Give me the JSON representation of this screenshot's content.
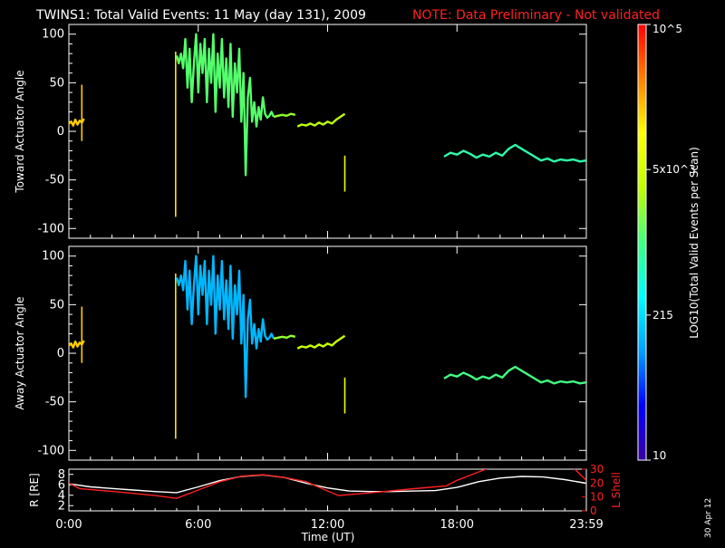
{
  "header": {
    "title": "TWINS1: Total Valid Events: 11 May (day 131), 2009",
    "note": "NOTE: Data Preliminary - Not validated"
  },
  "stamp": "30 Apr 12",
  "colors": {
    "background": "#000000",
    "axes": "#ffffff",
    "note": "#ff2020",
    "r_line": "#ffffff",
    "lshell_line": "#ff2020"
  },
  "chart_data": [
    {
      "id": "toward",
      "type": "line",
      "ylabel": "Toward Actuator Angle",
      "ylim": [
        -110,
        110
      ],
      "yticks": [
        -100,
        -50,
        0,
        50,
        100
      ],
      "xlim": [
        0,
        24
      ],
      "xticks": [
        0,
        6,
        12,
        18,
        24
      ],
      "tick_labels": [
        "0:00",
        "6:00",
        "12:00",
        "18:00",
        "23:59"
      ],
      "color_scale": "log10(events per scan)",
      "segments": [
        {
          "x": [
            0.0,
            0.1,
            0.2,
            0.3,
            0.4,
            0.5,
            0.6,
            0.7
          ],
          "y": [
            8,
            10,
            6,
            12,
            7,
            11,
            9,
            13
          ],
          "level": 0.8
        },
        {
          "x": [
            0.6,
            0.6
          ],
          "y": [
            -10,
            48
          ],
          "level": 0.8,
          "spike": true
        },
        {
          "x": [
            4.95,
            4.95
          ],
          "y": [
            -88,
            82
          ],
          "level": 0.78,
          "spike": true
        },
        {
          "x": [
            5.0,
            5.1,
            5.2,
            5.3,
            5.4,
            5.5,
            5.6,
            5.7,
            5.8,
            5.9,
            6.0,
            6.1,
            6.2,
            6.3,
            6.4,
            6.5,
            6.6,
            6.7,
            6.8,
            6.9,
            7.0,
            7.1,
            7.2,
            7.3,
            7.4,
            7.5,
            7.6,
            7.7,
            7.8,
            7.9,
            8.0,
            8.1,
            8.2,
            8.3,
            8.4,
            8.5,
            8.6,
            8.7,
            8.8,
            8.9,
            9.0,
            9.1,
            9.2,
            9.3,
            9.4,
            9.5
          ],
          "y": [
            78,
            70,
            80,
            65,
            95,
            45,
            85,
            30,
            70,
            100,
            40,
            90,
            60,
            95,
            30,
            85,
            50,
            100,
            20,
            80,
            45,
            95,
            35,
            75,
            25,
            90,
            15,
            70,
            40,
            85,
            10,
            60,
            -45,
            35,
            55,
            10,
            30,
            5,
            25,
            12,
            35,
            18,
            14,
            16,
            20,
            15
          ],
          "level": 0.52
        },
        {
          "x": [
            9.5,
            9.7,
            9.9,
            10.1,
            10.3,
            10.5
          ],
          "y": [
            15,
            16,
            17,
            16,
            18,
            17
          ],
          "level": 0.58
        },
        {
          "x": [
            10.6,
            10.8,
            11.0,
            11.2,
            11.4,
            11.6,
            11.8,
            12.0,
            12.2,
            12.4,
            12.6,
            12.8
          ],
          "y": [
            5,
            7,
            6,
            8,
            6,
            9,
            7,
            10,
            8,
            12,
            15,
            18
          ],
          "level": 0.62
        },
        {
          "x": [
            12.8,
            12.8
          ],
          "y": [
            -62,
            -25
          ],
          "level": 0.72,
          "spike": true
        },
        {
          "x": [
            17.4,
            17.7,
            18.0,
            18.3,
            18.6,
            18.9,
            19.2,
            19.5,
            19.8,
            20.1,
            20.4,
            20.7,
            21.0,
            21.3,
            21.6,
            21.9,
            22.2,
            22.5,
            22.8,
            23.1,
            23.4,
            23.7,
            23.99
          ],
          "y": [
            -26,
            -22,
            -24,
            -20,
            -23,
            -27,
            -24,
            -26,
            -22,
            -25,
            -18,
            -14,
            -18,
            -22,
            -26,
            -30,
            -28,
            -31,
            -29,
            -30,
            -29,
            -31,
            -30
          ],
          "level": 0.46
        }
      ]
    },
    {
      "id": "away",
      "type": "line",
      "ylabel": "Away Actuator Angle",
      "ylim": [
        -110,
        110
      ],
      "yticks": [
        -100,
        -50,
        0,
        50,
        100
      ],
      "xlim": [
        0,
        24
      ],
      "xticks": [
        0,
        6,
        12,
        18,
        24
      ],
      "tick_labels": [
        "0:00",
        "6:00",
        "12:00",
        "18:00",
        "23:59"
      ],
      "color_scale": "log10(events per scan)",
      "segments": [
        {
          "x": [
            0.0,
            0.1,
            0.2,
            0.3,
            0.4,
            0.5,
            0.6,
            0.7
          ],
          "y": [
            8,
            10,
            6,
            12,
            7,
            11,
            9,
            13
          ],
          "level": 0.8
        },
        {
          "x": [
            0.6,
            0.6
          ],
          "y": [
            -10,
            48
          ],
          "level": 0.8,
          "spike": true
        },
        {
          "x": [
            4.95,
            4.95
          ],
          "y": [
            -88,
            82
          ],
          "level": 0.78,
          "spike": true
        },
        {
          "x": [
            5.0,
            5.1,
            5.2,
            5.3,
            5.4,
            5.5,
            5.6,
            5.7,
            5.8,
            5.9,
            6.0,
            6.1,
            6.2,
            6.3,
            6.4,
            6.5,
            6.6,
            6.7,
            6.8,
            6.9,
            7.0,
            7.1,
            7.2,
            7.3,
            7.4,
            7.5,
            7.6,
            7.7,
            7.8,
            7.9,
            8.0,
            8.1,
            8.2,
            8.3,
            8.4,
            8.5,
            8.6,
            8.7,
            8.8,
            8.9,
            9.0,
            9.1,
            9.2,
            9.3,
            9.4,
            9.5
          ],
          "y": [
            78,
            70,
            80,
            65,
            95,
            45,
            85,
            30,
            70,
            100,
            40,
            90,
            60,
            95,
            30,
            85,
            50,
            100,
            20,
            80,
            45,
            95,
            35,
            75,
            25,
            90,
            15,
            70,
            40,
            85,
            10,
            60,
            -45,
            35,
            55,
            10,
            30,
            5,
            25,
            12,
            35,
            18,
            14,
            16,
            20,
            15
          ],
          "level": 0.28
        },
        {
          "x": [
            9.5,
            9.7,
            9.9,
            10.1,
            10.3,
            10.5
          ],
          "y": [
            15,
            16,
            17,
            16,
            18,
            17
          ],
          "level": 0.58
        },
        {
          "x": [
            10.6,
            10.8,
            11.0,
            11.2,
            11.4,
            11.6,
            11.8,
            12.0,
            12.2,
            12.4,
            12.6,
            12.8
          ],
          "y": [
            5,
            7,
            6,
            8,
            6,
            9,
            7,
            10,
            8,
            12,
            15,
            18
          ],
          "level": 0.64
        },
        {
          "x": [
            12.8,
            12.8
          ],
          "y": [
            -62,
            -25
          ],
          "level": 0.72,
          "spike": true
        },
        {
          "x": [
            17.4,
            17.7,
            18.0,
            18.3,
            18.6,
            18.9,
            19.2,
            19.5,
            19.8,
            20.1,
            20.4,
            20.7,
            21.0,
            21.3,
            21.6,
            21.9,
            22.2,
            22.5,
            22.8,
            23.1,
            23.4,
            23.7,
            23.99
          ],
          "y": [
            -26,
            -22,
            -24,
            -20,
            -23,
            -27,
            -24,
            -26,
            -22,
            -25,
            -18,
            -14,
            -18,
            -22,
            -26,
            -30,
            -28,
            -31,
            -29,
            -30,
            -29,
            -31,
            -30
          ],
          "level": 0.5
        }
      ]
    },
    {
      "id": "orbit",
      "type": "line",
      "xlabel": "Time (UT)",
      "ylabel_left": "R [RE]",
      "ylabel_right": "L Shell",
      "xlim": [
        0,
        24
      ],
      "xticks": [
        0,
        6,
        12,
        18,
        24
      ],
      "tick_labels": [
        "0:00",
        "6:00",
        "12:00",
        "18:00",
        "23:59"
      ],
      "ylim_left": [
        1,
        9
      ],
      "yticks_left": [
        2,
        4,
        6,
        8
      ],
      "ylim_right": [
        0,
        30
      ],
      "yticks_right": [
        0,
        10,
        20,
        30
      ],
      "series": [
        {
          "axis": "left",
          "color": "#ffffff",
          "x": [
            0,
            1,
            2,
            3,
            4,
            5,
            6,
            7,
            8,
            9,
            10,
            11,
            12,
            13,
            14,
            15,
            16,
            17,
            18,
            19,
            20,
            21,
            22,
            23,
            23.99
          ],
          "y": [
            6.2,
            5.6,
            5.3,
            5.0,
            4.7,
            4.5,
            5.6,
            6.8,
            7.6,
            7.9,
            7.4,
            6.3,
            5.4,
            4.8,
            4.7,
            4.7,
            4.8,
            4.9,
            5.5,
            6.6,
            7.3,
            7.6,
            7.5,
            7.0,
            6.3
          ]
        },
        {
          "axis": "right",
          "color": "#ff2020",
          "x": [
            0,
            0.5,
            2,
            4,
            5,
            6,
            7,
            8,
            9,
            10,
            11,
            12.5,
            14,
            16,
            17.5,
            18,
            19,
            20,
            23.2,
            23.6,
            24
          ],
          "y": [
            20,
            16,
            14,
            11,
            9,
            15,
            21,
            25,
            26,
            24,
            21,
            11,
            13,
            16,
            18,
            22,
            28,
            34,
            34,
            28,
            22
          ]
        }
      ]
    }
  ],
  "colorbar": {
    "label": "LOG10(Total Valid Events per Scan)",
    "tick_labels": [
      "10",
      "215",
      "5x10^3",
      "10^5"
    ],
    "tick_levels": [
      0.0,
      0.333,
      0.667,
      1.0
    ],
    "gradient": [
      "#3a00a0",
      "#0000ff",
      "#00a0ff",
      "#00ffff",
      "#40ff80",
      "#c0ff00",
      "#ffff00",
      "#ff8000",
      "#ff0000"
    ]
  }
}
